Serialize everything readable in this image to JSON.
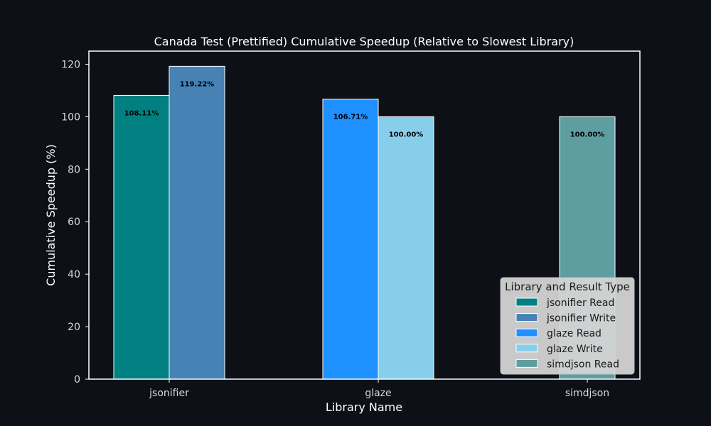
{
  "colors": {
    "background": "#0d1117",
    "text": "#ffffff",
    "tick_text": "#d9d9d9",
    "axis": "#ffffff",
    "bar_edge": "#ffffff",
    "bar_label": "#000000",
    "legend_bg": "#d4d4d4",
    "legend_text": "#1a1a1a"
  },
  "chart_data": {
    "type": "bar",
    "title": "Canada Test (Prettified) Cumulative Speedup (Relative to Slowest Library)",
    "xlabel": "Library Name",
    "ylabel": "Cumulative Speedup (%)",
    "ylim": [
      0,
      125
    ],
    "yticks": [
      0,
      20,
      40,
      60,
      80,
      100,
      120
    ],
    "categories": [
      "jsonifier",
      "glaze",
      "simdjson"
    ],
    "grid": false,
    "legend": {
      "title": "Library and Result Type",
      "placement": "lower-right"
    },
    "series": [
      {
        "name": "jsonifier Read",
        "category": "jsonifier",
        "value": 108.11,
        "label": "108.11%",
        "color": "#008080"
      },
      {
        "name": "jsonifier Write",
        "category": "jsonifier",
        "value": 119.22,
        "label": "119.22%",
        "color": "#4682b4"
      },
      {
        "name": "glaze Read",
        "category": "glaze",
        "value": 106.71,
        "label": "106.71%",
        "color": "#1e90ff"
      },
      {
        "name": "glaze Write",
        "category": "glaze",
        "value": 100.0,
        "label": "100.00%",
        "color": "#87ceeb"
      },
      {
        "name": "simdjson Read",
        "category": "simdjson",
        "value": 100.0,
        "label": "100.00%",
        "color": "#5f9ea0"
      }
    ]
  }
}
